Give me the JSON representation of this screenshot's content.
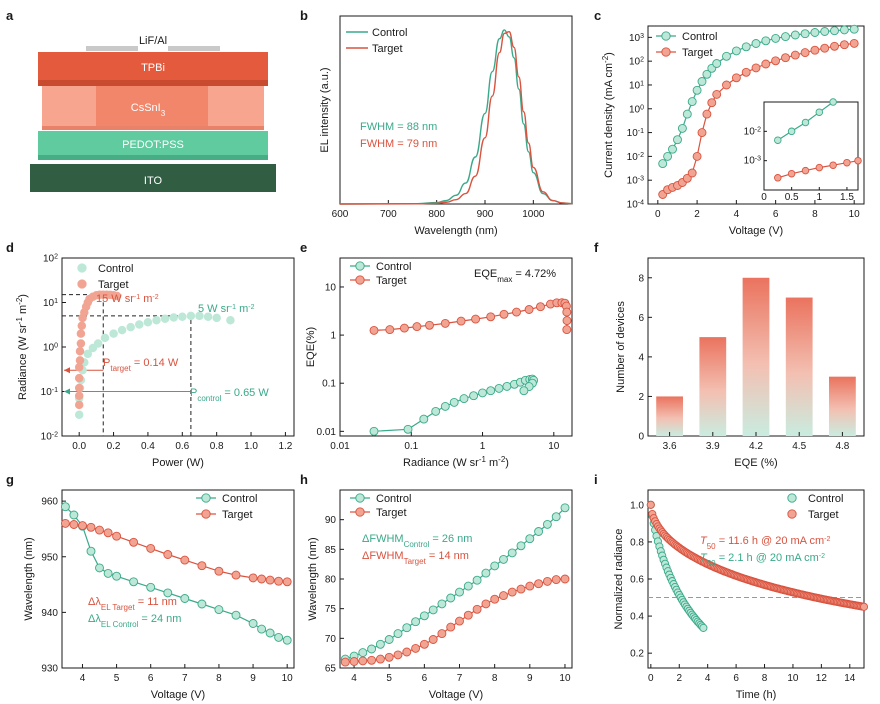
{
  "colors": {
    "control": "#3aa98a",
    "control_fill": "#bde8d8",
    "target": "#d9533f",
    "target_fill": "#f2a493",
    "axis": "#1a1a1a"
  },
  "panels": {
    "a": {
      "label": "a",
      "layers": [
        "LiF/Al",
        "TPBi",
        "CsSnI",
        "PEDOT:PSS",
        "ITO"
      ],
      "csSnI_subscript": "3"
    },
    "b": {
      "label": "b",
      "legend": [
        "Control",
        "Target"
      ],
      "fwhm_control": "FWHM = 88 nm",
      "fwhm_target": "FWHM = 79 nm"
    },
    "c": {
      "label": "c",
      "legend": [
        "Control",
        "Target"
      ]
    },
    "d": {
      "label": "d",
      "legend": [
        "Control",
        "Target"
      ],
      "ann_15": "15 W sr",
      "ann_5": "5 W sr",
      "ann_ptarget": "target",
      "ann_ptarget_val": " = 0.14 W",
      "ann_pcontrol": "control",
      "ann_pcontrol_val": " = 0.65 W"
    },
    "e": {
      "label": "e",
      "legend": [
        "Control",
        "Target"
      ],
      "eqe_max": "EQE",
      "eqe_max_sub": "max",
      "eqe_max_val": " = 4.72%"
    },
    "f": {
      "label": "f"
    },
    "g": {
      "label": "g",
      "legend": [
        "Control",
        "Target"
      ],
      "ann_target": "EL Target",
      "ann_target_val": " = 11 nm",
      "ann_control": "EL Control",
      "ann_control_val": " = 24 nm"
    },
    "h": {
      "label": "h",
      "legend": [
        "Control",
        "Target"
      ],
      "ann_control_sub": "Control",
      "ann_control_val": " = 26 nm",
      "ann_target_sub": "Target",
      "ann_target_val": " = 14 nm"
    },
    "i": {
      "label": "i",
      "legend": [
        "Control",
        "Target"
      ],
      "ann_target": " = 11.6 h @ 20 mA cm",
      "ann_control": " = 2.1 h @ 20 mA cm"
    }
  },
  "chart_data": [
    {
      "panel": "b",
      "type": "line",
      "xlabel": "Wavelength (nm)",
      "ylabel": "EL intensity (a.u.)",
      "xlim": [
        600,
        1080
      ],
      "xticks": [
        600,
        700,
        800,
        900,
        1000
      ],
      "series": [
        {
          "name": "Control",
          "x": [
            600,
            760,
            800,
            820,
            840,
            860,
            880,
            900,
            915,
            930,
            940,
            950,
            960,
            970,
            980,
            990,
            1000,
            1020,
            1040,
            1060,
            1080
          ],
          "y": [
            0,
            0.002,
            0.008,
            0.02,
            0.05,
            0.12,
            0.27,
            0.52,
            0.76,
            0.95,
            1.0,
            0.96,
            0.84,
            0.66,
            0.46,
            0.3,
            0.18,
            0.06,
            0.02,
            0.006,
            0.002
          ]
        },
        {
          "name": "Target",
          "x": [
            600,
            760,
            800,
            820,
            840,
            860,
            880,
            900,
            915,
            930,
            940,
            950,
            960,
            970,
            980,
            990,
            1000,
            1020,
            1040,
            1060,
            1080
          ],
          "y": [
            0,
            0.001,
            0.004,
            0.01,
            0.025,
            0.06,
            0.16,
            0.38,
            0.62,
            0.87,
            0.98,
            0.99,
            0.9,
            0.73,
            0.53,
            0.35,
            0.21,
            0.07,
            0.02,
            0.006,
            0.002
          ]
        }
      ]
    },
    {
      "panel": "c",
      "type": "scatter",
      "xlabel": "Voltage (V)",
      "ylabel": "Current density (mA cm",
      "ylabel_sup": "-2",
      "ylabel_tail": ")",
      "xlim": [
        -0.5,
        10.5
      ],
      "xticks": [
        0,
        2,
        4,
        6,
        8,
        10
      ],
      "yscale": "log",
      "ylim": [
        0.0001,
        3000
      ],
      "ytick_base": "10",
      "ytick_exp": [
        "-4",
        "-3",
        "-2",
        "-1",
        "0",
        "1",
        "2",
        "3"
      ],
      "series": [
        {
          "name": "Control",
          "x": [
            0.25,
            0.5,
            0.75,
            1.0,
            1.25,
            1.5,
            1.75,
            2.0,
            2.25,
            2.5,
            2.75,
            3.0,
            3.5,
            4.0,
            4.5,
            5.0,
            5.5,
            6.0,
            6.5,
            7.0,
            7.5,
            8.0,
            8.5,
            9.0,
            9.5,
            10.0
          ],
          "y": [
            0.005,
            0.01,
            0.02,
            0.05,
            0.15,
            0.6,
            2,
            6,
            14,
            28,
            50,
            80,
            160,
            270,
            400,
            550,
            720,
            900,
            1080,
            1260,
            1430,
            1600,
            1760,
            1900,
            2050,
            2200
          ]
        },
        {
          "name": "Target",
          "x": [
            0.25,
            0.5,
            0.75,
            1.0,
            1.25,
            1.5,
            1.75,
            2.0,
            2.25,
            2.5,
            2.75,
            3.0,
            3.5,
            4.0,
            4.5,
            5.0,
            5.5,
            6.0,
            6.5,
            7.0,
            7.5,
            8.0,
            8.5,
            9.0,
            9.5,
            10.0
          ],
          "y": [
            0.00025,
            0.0004,
            0.0005,
            0.0006,
            0.0008,
            0.0012,
            0.002,
            0.01,
            0.1,
            0.6,
            1.8,
            4,
            10,
            20,
            34,
            52,
            76,
            104,
            140,
            180,
            230,
            290,
            350,
            420,
            490,
            560
          ]
        }
      ],
      "inset": {
        "xlim": [
          0,
          1.7
        ],
        "xticks": [
          "0",
          "0.5",
          "1",
          "1.5"
        ],
        "xticks_val": [
          0,
          0.5,
          1.0,
          1.5
        ],
        "ylim": [
          0.0001,
          0.1
        ],
        "yticks_base": "10",
        "yticks_exp": [
          "-3",
          "-2"
        ],
        "series": [
          {
            "name": "Control",
            "x": [
              0.25,
              0.5,
              0.75,
              1.0,
              1.25
            ],
            "y": [
              0.005,
              0.01,
              0.02,
              0.045,
              0.1
            ]
          },
          {
            "name": "Target",
            "x": [
              0.25,
              0.5,
              0.75,
              1.0,
              1.25,
              1.5,
              1.7
            ],
            "y": [
              0.00026,
              0.00036,
              0.00046,
              0.00058,
              0.0007,
              0.00085,
              0.001
            ]
          }
        ]
      }
    },
    {
      "panel": "d",
      "type": "scatter",
      "xlabel": "Power (W)",
      "ylabel": "Radiance (W sr",
      "ylabel_sup": "-1",
      "ylabel_mid": " m",
      "ylabel_sup2": "-2",
      "ylabel_tail": ")",
      "xlim": [
        -0.1,
        1.25
      ],
      "xticks": [
        "0.0",
        "0.2",
        "0.4",
        "0.6",
        "0.8",
        "1.0",
        "1.2"
      ],
      "xticks_val": [
        0,
        0.2,
        0.4,
        0.6,
        0.8,
        1.0,
        1.2
      ],
      "yscale": "log",
      "ylim": [
        0.01,
        100
      ],
      "ytick_base": "10",
      "ytick_exp": [
        "-2",
        "-1",
        "0",
        "1",
        "2"
      ],
      "series": [
        {
          "name": "Control",
          "x": [
            0.0,
            0.0,
            0.005,
            0.01,
            0.02,
            0.03,
            0.05,
            0.08,
            0.11,
            0.15,
            0.2,
            0.25,
            0.3,
            0.35,
            0.4,
            0.45,
            0.5,
            0.55,
            0.6,
            0.65,
            0.7,
            0.75,
            0.8,
            0.88
          ],
          "y": [
            0.03,
            0.07,
            0.12,
            0.18,
            0.3,
            0.45,
            0.7,
            0.95,
            1.2,
            1.6,
            2.0,
            2.4,
            2.8,
            3.2,
            3.6,
            4.0,
            4.3,
            4.6,
            4.8,
            5.0,
            5.0,
            4.8,
            4.5,
            4.0
          ]
        },
        {
          "name": "Target",
          "x": [
            0.0,
            0.0,
            0.0,
            0.0,
            0.0,
            0.005,
            0.005,
            0.01,
            0.01,
            0.015,
            0.02,
            0.03,
            0.04,
            0.05,
            0.06,
            0.08,
            0.1,
            0.12,
            0.14,
            0.16,
            0.18,
            0.2,
            0.22
          ],
          "y": [
            0.05,
            0.08,
            0.12,
            0.2,
            0.35,
            0.5,
            0.8,
            1.2,
            2,
            3,
            4.5,
            6,
            8,
            10,
            12,
            13.5,
            14.5,
            15,
            15,
            15,
            14.8,
            14.5,
            14
          ]
        }
      ]
    },
    {
      "panel": "e",
      "type": "scatter",
      "xlabel": "Radiance (W sr",
      "xlabel_sup": "-1",
      "xlabel_mid": " m",
      "xlabel_sup2": "-2",
      "xlabel_tail": ")",
      "ylabel": "EQE(%)",
      "xscale": "log",
      "xlim": [
        0.01,
        18
      ],
      "xticks": [
        "0.01",
        "0.1",
        "1",
        "10"
      ],
      "xticks_val": [
        0.01,
        0.1,
        1,
        10
      ],
      "yscale": "log",
      "ylim": [
        0.008,
        40
      ],
      "yticks": [
        "0.01",
        "0.1",
        "1",
        "10"
      ],
      "yticks_val": [
        0.01,
        0.1,
        1,
        10
      ],
      "series": [
        {
          "name": "Control",
          "x": [
            0.03,
            0.09,
            0.15,
            0.22,
            0.3,
            0.4,
            0.55,
            0.75,
            1.0,
            1.3,
            1.7,
            2.2,
            2.8,
            3.4,
            4.0,
            4.6,
            5.0,
            5.2,
            5.0,
            4.5,
            3.8
          ],
          "y": [
            0.01,
            0.011,
            0.018,
            0.026,
            0.033,
            0.04,
            0.048,
            0.055,
            0.063,
            0.07,
            0.078,
            0.086,
            0.095,
            0.105,
            0.115,
            0.12,
            0.122,
            0.115,
            0.1,
            0.085,
            0.07
          ]
        },
        {
          "name": "Target",
          "x": [
            0.03,
            0.05,
            0.08,
            0.12,
            0.18,
            0.3,
            0.5,
            0.8,
            1.3,
            2.0,
            3.0,
            4.5,
            6.5,
            9.0,
            11,
            13,
            14.3,
            15,
            15.2,
            15.3,
            15.2
          ],
          "y": [
            1.25,
            1.3,
            1.4,
            1.5,
            1.6,
            1.75,
            1.95,
            2.15,
            2.4,
            2.7,
            3.0,
            3.4,
            3.9,
            4.4,
            4.7,
            4.72,
            4.6,
            4.0,
            3.0,
            2.0,
            1.3
          ]
        }
      ]
    },
    {
      "panel": "f",
      "type": "bar",
      "xlabel": "EQE (%)",
      "ylabel": "Number of devices",
      "categories": [
        "3.6",
        "3.9",
        "4.2",
        "4.5",
        "4.8"
      ],
      "values": [
        2,
        5,
        8,
        7,
        3
      ],
      "ylim": [
        0,
        9
      ],
      "yticks": [
        0,
        2,
        4,
        6,
        8
      ]
    },
    {
      "panel": "g",
      "type": "line",
      "xlabel": "Voltage (V)",
      "ylabel": "Wavelength (nm)",
      "xlim": [
        3.4,
        10.2
      ],
      "xticks": [
        4,
        5,
        6,
        7,
        8,
        9,
        10
      ],
      "ylim": [
        930,
        962
      ],
      "yticks": [
        930,
        940,
        950,
        960
      ],
      "series": [
        {
          "name": "Control",
          "x": [
            3.5,
            3.75,
            4.0,
            4.25,
            4.5,
            4.75,
            5.0,
            5.5,
            6.0,
            6.5,
            7.0,
            7.5,
            8.0,
            8.5,
            9.0,
            9.25,
            9.5,
            9.75,
            10.0
          ],
          "y": [
            959,
            957.5,
            955.5,
            951,
            948,
            947,
            946.5,
            945.5,
            944.5,
            943.5,
            942.5,
            941.5,
            940.5,
            939.5,
            938,
            937,
            936.3,
            935.5,
            935
          ]
        },
        {
          "name": "Target",
          "x": [
            3.5,
            3.75,
            4.0,
            4.25,
            4.5,
            4.75,
            5.0,
            5.5,
            6.0,
            6.5,
            7.0,
            7.5,
            8.0,
            8.5,
            9.0,
            9.25,
            9.5,
            9.75,
            10.0
          ],
          "y": [
            956,
            955.8,
            955.6,
            955.3,
            954.8,
            954.3,
            953.7,
            952.6,
            951.5,
            950.4,
            949.4,
            948.4,
            947.4,
            946.7,
            946.2,
            946,
            945.8,
            945.6,
            945.5
          ]
        }
      ]
    },
    {
      "panel": "h",
      "type": "line",
      "xlabel": "Voltage (V)",
      "ylabel": "Wavelength (nm)",
      "xlim": [
        3.6,
        10.2
      ],
      "xticks": [
        4,
        5,
        6,
        7,
        8,
        9,
        10
      ],
      "ylim": [
        65,
        95
      ],
      "yticks": [
        65,
        70,
        75,
        80,
        85,
        90
      ],
      "series": [
        {
          "name": "Control",
          "x": [
            3.75,
            4.0,
            4.25,
            4.5,
            4.75,
            5.0,
            5.25,
            5.5,
            5.75,
            6.0,
            6.25,
            6.5,
            6.75,
            7.0,
            7.25,
            7.5,
            7.75,
            8.0,
            8.25,
            8.5,
            8.75,
            9.0,
            9.25,
            9.5,
            9.75,
            10.0
          ],
          "y": [
            66.5,
            67,
            67.6,
            68.2,
            69,
            69.8,
            70.8,
            71.8,
            72.8,
            73.8,
            74.8,
            75.8,
            76.8,
            77.8,
            78.8,
            79.8,
            81,
            82.2,
            83.3,
            84.4,
            85.6,
            86.8,
            88,
            89.2,
            90.5,
            92
          ]
        },
        {
          "name": "Target",
          "x": [
            3.75,
            4.0,
            4.25,
            4.5,
            4.75,
            5.0,
            5.25,
            5.5,
            5.75,
            6.0,
            6.25,
            6.5,
            6.75,
            7.0,
            7.25,
            7.5,
            7.75,
            8.0,
            8.25,
            8.5,
            8.75,
            9.0,
            9.25,
            9.5,
            9.75,
            10.0
          ],
          "y": [
            66,
            66.1,
            66.2,
            66.3,
            66.5,
            66.8,
            67.2,
            67.7,
            68.3,
            69,
            69.8,
            70.8,
            71.9,
            72.9,
            73.9,
            74.9,
            75.8,
            76.6,
            77.2,
            77.8,
            78.3,
            78.8,
            79.2,
            79.6,
            79.9,
            80
          ]
        }
      ]
    },
    {
      "panel": "i",
      "type": "scatter",
      "xlabel": "Time (h)",
      "ylabel": "Normalized radiance",
      "xlim": [
        -0.2,
        15
      ],
      "xticks": [
        0,
        2,
        4,
        6,
        8,
        10,
        12,
        14
      ],
      "ylim": [
        0.12,
        1.08
      ],
      "yticks": [
        "0.2",
        "0.4",
        "0.6",
        "0.8",
        "1.0"
      ],
      "yticks_val": [
        0.2,
        0.4,
        0.6,
        0.8,
        1.0
      ],
      "hline": 0.5,
      "series": [
        {
          "name": "Control",
          "model": "stretched-exp",
          "t50": 2.1,
          "tmax": 3.7,
          "points": 38
        },
        {
          "name": "Target",
          "model": "stretched-exp",
          "t50": 11.6,
          "tmax": 15.0,
          "points": 150
        }
      ]
    }
  ]
}
